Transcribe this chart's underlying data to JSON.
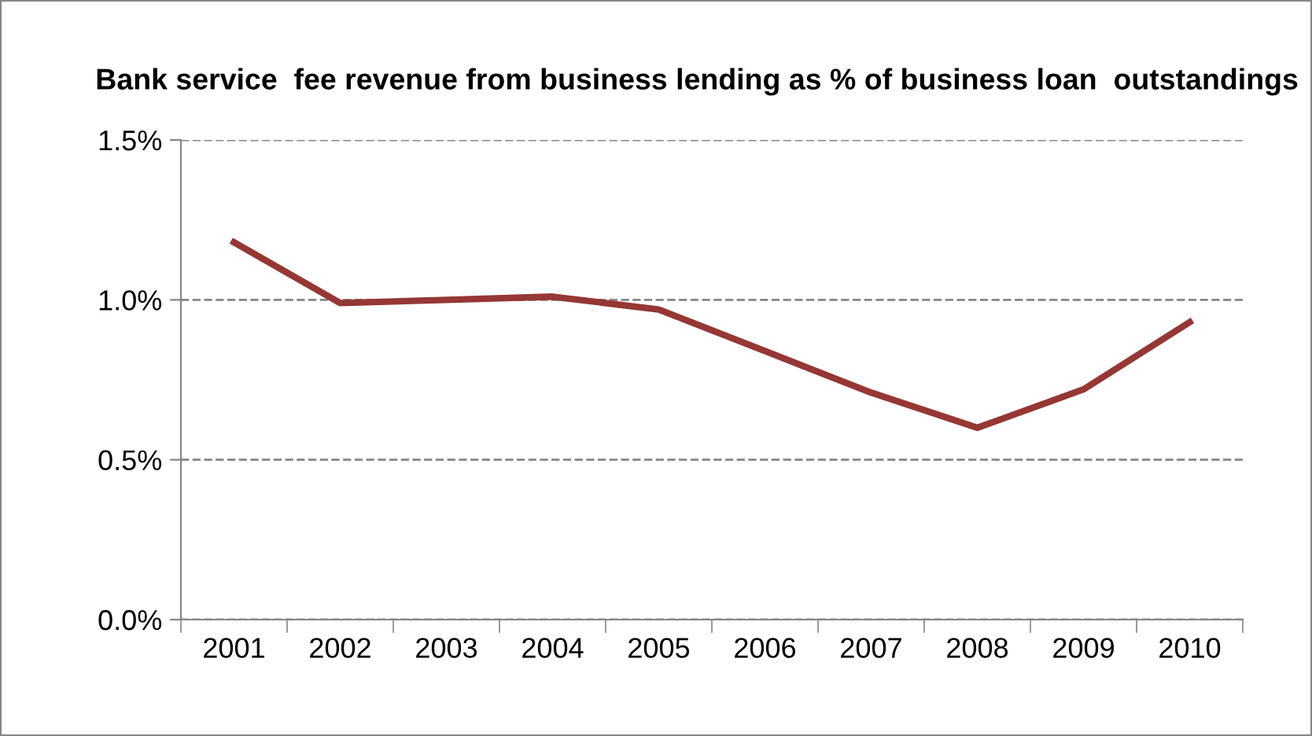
{
  "chart_data": {
    "type": "line",
    "title": "Bank service  fee revenue from business lending as % of business loan  outstandings",
    "categories": [
      "2001",
      "2002",
      "2003",
      "2004",
      "2005",
      "2006",
      "2007",
      "2008",
      "2009",
      "2010"
    ],
    "series": [
      {
        "color": "#953735",
        "values": [
          1.18,
          0.99,
          1.0,
          1.01,
          0.97,
          0.84,
          0.71,
          0.6,
          0.72,
          0.93
        ]
      }
    ],
    "ylim": [
      0,
      1.5
    ],
    "yticks": [
      {
        "value": 0,
        "label": "0.0%"
      },
      {
        "value": 0.5,
        "label": "0.5%"
      },
      {
        "value": 1.0,
        "label": "1.0%"
      },
      {
        "value": 1.5,
        "label": "1.5%"
      }
    ],
    "grid": "y",
    "legend": false,
    "marker": "none",
    "line_style": "solid"
  }
}
